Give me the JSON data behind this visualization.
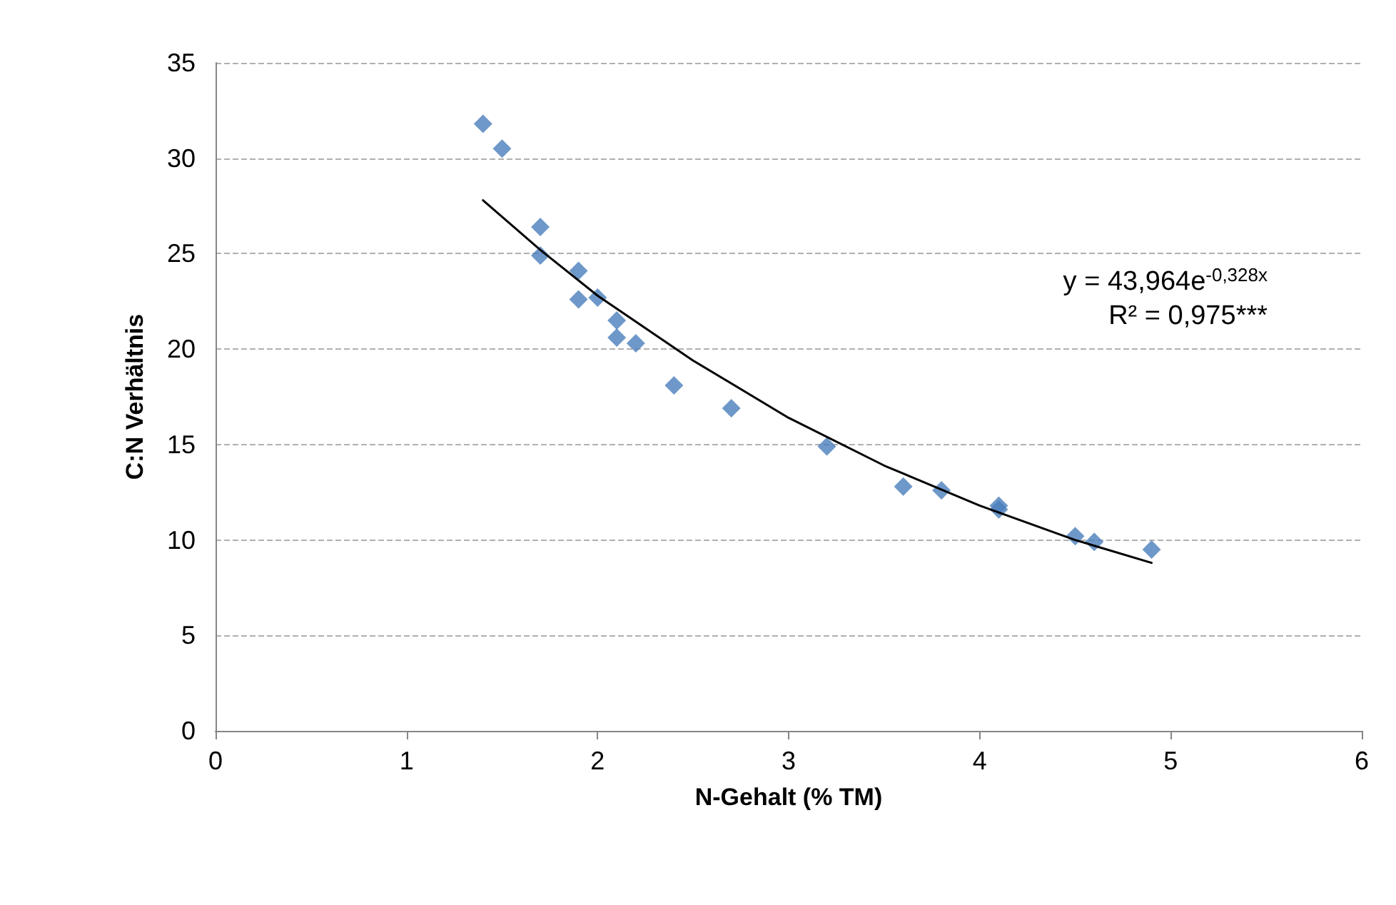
{
  "chart_data": {
    "type": "scatter",
    "xlabel": "N-Gehalt (% TM)",
    "ylabel": "C:N Verhältnis",
    "xlim": [
      0,
      6
    ],
    "xticks": [
      0,
      1,
      2,
      3,
      4,
      5,
      6
    ],
    "ylim": [
      0,
      35
    ],
    "yticks": [
      0,
      5,
      10,
      15,
      20,
      25,
      30,
      35
    ],
    "grid": "y",
    "marker": "diamond",
    "annotations": [
      "y = 43,964e$^{-0,328x}$",
      "R² = 0,975***"
    ],
    "series": [
      {
        "color": "#4a7ebb",
        "x": [
          1.4,
          1.5,
          1.7,
          1.7,
          1.9,
          1.9,
          2.0,
          2.1,
          2.1,
          2.2,
          2.4,
          2.7,
          3.2,
          3.6,
          3.8,
          4.1,
          4.1,
          4.5,
          4.6,
          4.9
        ],
        "values": [
          31.8,
          30.5,
          26.4,
          24.9,
          24.1,
          22.6,
          22.7,
          21.5,
          20.6,
          20.3,
          18.1,
          16.9,
          14.9,
          12.8,
          12.6,
          11.8,
          11.6,
          10.2,
          9.9,
          9.5
        ]
      },
      {
        "type": "line",
        "color": "#000000",
        "marker": "none",
        "x": [
          1.4,
          1.7,
          2.0,
          2.5,
          3.0,
          3.5,
          4.0,
          4.5,
          4.9
        ],
        "values": [
          27.8,
          25.2,
          22.8,
          19.4,
          16.4,
          13.9,
          11.8,
          10.0,
          8.8
        ]
      }
    ]
  }
}
